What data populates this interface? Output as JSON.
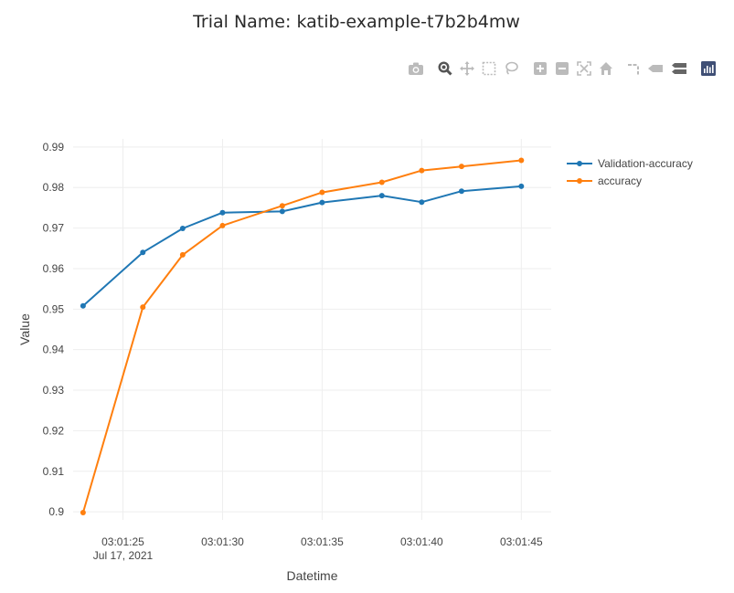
{
  "title": "Trial Name: katib-example-t7b2b4mw",
  "modebar": [
    {
      "name": "camera-icon"
    },
    {
      "name": "zoom-icon"
    },
    {
      "name": "pan-icon"
    },
    {
      "name": "box-select-icon"
    },
    {
      "name": "lasso-select-icon"
    },
    {
      "name": "zoom-in-icon"
    },
    {
      "name": "zoom-out-icon"
    },
    {
      "name": "autoscale-icon"
    },
    {
      "name": "home-icon"
    },
    {
      "name": "spike-lines-icon"
    },
    {
      "name": "hover-closest-icon"
    },
    {
      "name": "hover-compare-icon"
    },
    {
      "name": "plotly-logo-icon"
    }
  ],
  "chart_data": {
    "type": "line",
    "xlabel": "Datetime",
    "ylabel": "Value",
    "x_date_label": "Jul 17, 2021",
    "x_ticks": [
      "03:01:25",
      "03:01:30",
      "03:01:35",
      "03:01:40",
      "03:01:45"
    ],
    "y_ticks": [
      0.9,
      0.91,
      0.92,
      0.93,
      0.94,
      0.95,
      0.96,
      0.97,
      0.98,
      0.99
    ],
    "x_range": [
      "03:01:22.5",
      "03:01:46.5"
    ],
    "ylim": [
      0.898,
      0.992
    ],
    "grid": true,
    "legend_position": "top-right",
    "series": [
      {
        "name": "Validation-accuracy",
        "color": "#1f77b4",
        "points": [
          {
            "x": "03:01:23",
            "y": 0.9508
          },
          {
            "x": "03:01:26",
            "y": 0.964
          },
          {
            "x": "03:01:28",
            "y": 0.9699
          },
          {
            "x": "03:01:30",
            "y": 0.9738
          },
          {
            "x": "03:01:33",
            "y": 0.9741
          },
          {
            "x": "03:01:35",
            "y": 0.9763
          },
          {
            "x": "03:01:38",
            "y": 0.978
          },
          {
            "x": "03:01:40",
            "y": 0.9764
          },
          {
            "x": "03:01:42",
            "y": 0.9791
          },
          {
            "x": "03:01:45",
            "y": 0.9803
          }
        ]
      },
      {
        "name": "accuracy",
        "color": "#ff7f0e",
        "points": [
          {
            "x": "03:01:23",
            "y": 0.8998
          },
          {
            "x": "03:01:26",
            "y": 0.9505
          },
          {
            "x": "03:01:28",
            "y": 0.9634
          },
          {
            "x": "03:01:30",
            "y": 0.9706
          },
          {
            "x": "03:01:33",
            "y": 0.9755
          },
          {
            "x": "03:01:35",
            "y": 0.9788
          },
          {
            "x": "03:01:38",
            "y": 0.9813
          },
          {
            "x": "03:01:40",
            "y": 0.9842
          },
          {
            "x": "03:01:42",
            "y": 0.9852
          },
          {
            "x": "03:01:45",
            "y": 0.9867
          }
        ]
      }
    ]
  }
}
